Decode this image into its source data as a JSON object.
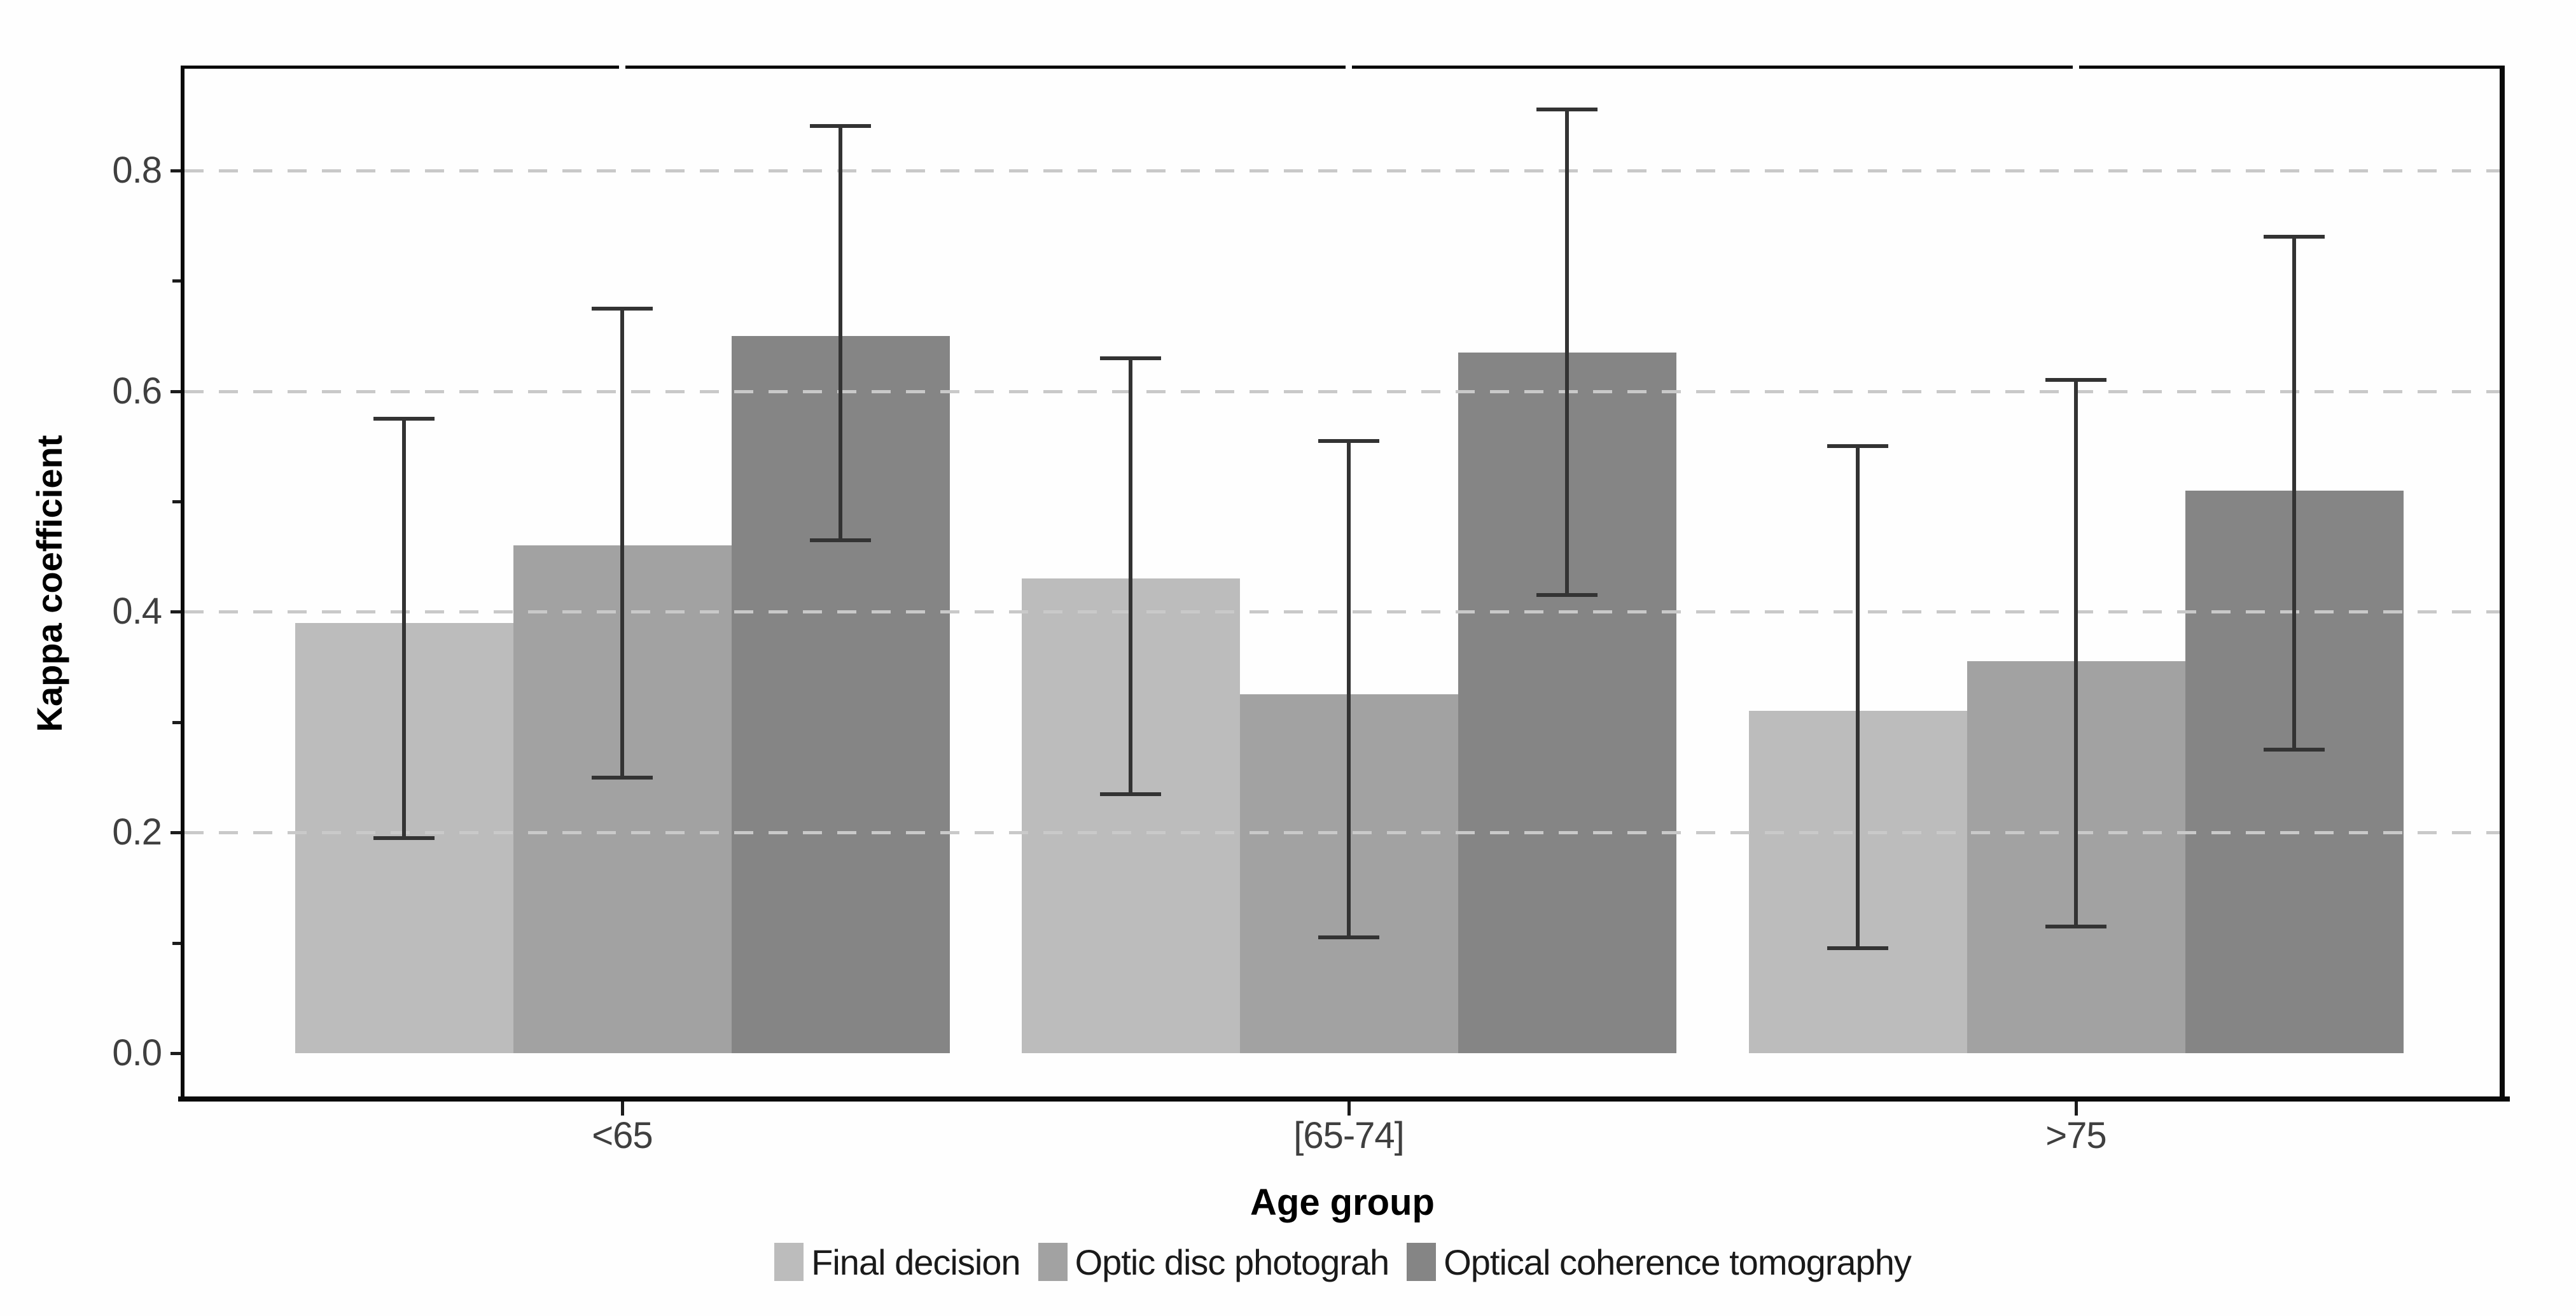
{
  "chart_data": {
    "type": "bar",
    "title": "",
    "xlabel": "Age group",
    "ylabel": "Kappa coefficient",
    "categories": [
      "<65",
      "[65-74]",
      ">75"
    ],
    "series": [
      {
        "name": "Final decision",
        "color": "#bcbcbc",
        "values": [
          0.39,
          0.43,
          0.31
        ],
        "ci_low": [
          0.195,
          0.235,
          0.095
        ],
        "ci_high": [
          0.575,
          0.63,
          0.55
        ]
      },
      {
        "name": "Optic disc photograh",
        "color": "#a2a2a2",
        "values": [
          0.46,
          0.325,
          0.355
        ],
        "ci_low": [
          0.25,
          0.105,
          0.115
        ],
        "ci_high": [
          0.675,
          0.555,
          0.61
        ]
      },
      {
        "name": "Optical coherence tomography",
        "color": "#858585",
        "values": [
          0.65,
          0.635,
          0.51
        ],
        "ci_low": [
          0.465,
          0.415,
          0.275
        ],
        "ci_high": [
          0.84,
          0.855,
          0.74
        ]
      }
    ],
    "ylim": [
      -0.044,
      0.895
    ],
    "y_ticks_labeled": [
      0.0,
      0.2,
      0.4,
      0.6,
      0.8
    ],
    "y_ticks_minor": [
      0.1,
      0.3,
      0.5,
      0.7
    ],
    "grid": {
      "show": true,
      "values": [
        0.2,
        0.4,
        0.6,
        0.8
      ],
      "style": "dashed",
      "color": "#c9c9c9"
    },
    "legend_position": "bottom",
    "error_bar_color": "#333333",
    "bar_outline": "none",
    "axis_color": "#0a0a0a",
    "tick_label_color": "#3f3f3f"
  }
}
